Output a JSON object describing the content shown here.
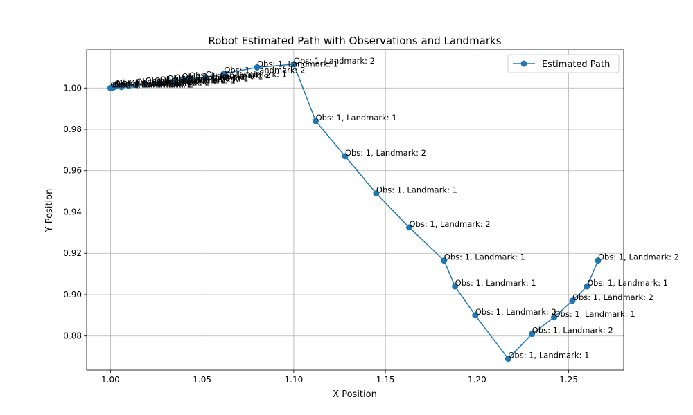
{
  "chart_data": {
    "type": "line",
    "title": "Robot Estimated Path with Observations and Landmarks",
    "xlabel": "X Position",
    "ylabel": "Y Position",
    "xlim": [
      0.987,
      1.28
    ],
    "ylim": [
      0.8635,
      1.0185
    ],
    "x_ticks": [
      1.0,
      1.05,
      1.1,
      1.15,
      1.2,
      1.25
    ],
    "x_tick_labels": [
      "1.00",
      "1.05",
      "1.10",
      "1.15",
      "1.20",
      "1.25"
    ],
    "y_ticks": [
      0.88,
      0.9,
      0.92,
      0.94,
      0.96,
      0.98,
      1.0
    ],
    "y_tick_labels": [
      "0.88",
      "0.90",
      "0.92",
      "0.94",
      "0.96",
      "0.98",
      "1.00"
    ],
    "grid": true,
    "legend_position": "top-right",
    "series": [
      {
        "name": "Estimated Path",
        "color": "#1f77b4",
        "marker": "circle",
        "x": [
          1.0,
          1.001,
          1.002,
          1.003,
          1.006,
          1.01,
          1.014,
          1.019,
          1.024,
          1.027,
          1.031,
          1.035,
          1.039,
          1.043,
          1.052,
          1.062,
          1.08,
          1.1,
          1.112,
          1.128,
          1.145,
          1.163,
          1.182,
          1.188,
          1.199,
          1.217,
          1.23,
          1.242,
          1.252,
          1.26,
          1.266
        ],
        "y": [
          1.0,
          1.0,
          1.0005,
          1.001,
          1.0005,
          1.001,
          1.0015,
          1.002,
          1.002,
          1.0025,
          1.003,
          1.0035,
          1.004,
          1.0045,
          1.005,
          1.007,
          1.01,
          1.0115,
          0.984,
          0.967,
          0.949,
          0.9325,
          0.9165,
          0.904,
          0.89,
          0.869,
          0.881,
          0.889,
          0.897,
          0.904,
          0.9165
        ],
        "labels": [
          "Obs: 1, Landmark: 1",
          "Obs: 1, Landmark: 2",
          "Obs: 1, Landmark: 1",
          "Obs: 1, Landmark: 2",
          "Obs: 1, Landmark: 1",
          "Obs: 1, Landmark: 2",
          "Obs: 1, Landmark: 1",
          "Obs: 1, Landmark: 2",
          "Obs: 1, Landmark: 1",
          "Obs: 1, Landmark: 2",
          "Obs: 1, Landmark: 1",
          "Obs: 1, Landmark: 2",
          "Obs: 1, Landmark: 1",
          "Obs: 1, Landmark: 2",
          "Obs: 1, Landmark: 1",
          "Obs: 1, Landmark: 2",
          "Obs: 1, Landmark: 1",
          "Obs: 1, Landmark: 2",
          "Obs: 1, Landmark: 1",
          "Obs: 1, Landmark: 2",
          "Obs: 1, Landmark: 1",
          "Obs: 1, Landmark: 2",
          "Obs: 1, Landmark: 1",
          "Obs: 1, Landmark: 1",
          "Obs: 1, Landmark: 2",
          "Obs: 1, Landmark: 1",
          "Obs: 1, Landmark: 2",
          "Obs: 1, Landmark: 1",
          "Obs: 1, Landmark: 2",
          "Obs: 1, Landmark: 1",
          "Obs: 1, Landmark: 2"
        ]
      }
    ]
  }
}
